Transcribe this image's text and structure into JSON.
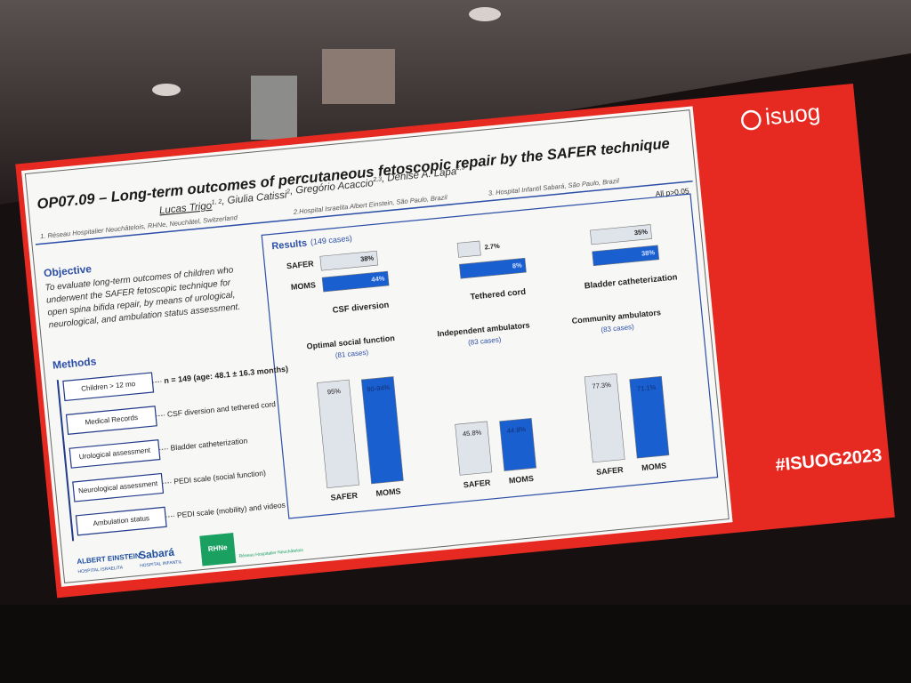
{
  "slide": {
    "title": "OP07.09 – Long-term outcomes of percutaneous fetoscopic repair by the SAFER technique",
    "authors": [
      {
        "name": "Lucas Trigo",
        "sup": "1, 2"
      },
      {
        "name": ", Giulia Catissi",
        "sup": "2"
      },
      {
        "name": ", Gregório Acaccio",
        "sup": "2,3"
      },
      {
        "name": ", Denise A. Lapa",
        "sup": "2,3"
      }
    ],
    "affiliations": [
      "1. Réseau Hospitalier Neuchâtelois, RHNe, Neuchâtel, Switzerland",
      "2.Hospital Israelita Albert Einstein, São Paulo, Brazil",
      "3. Hospital Infantil Sabará, São Paulo, Brazil"
    ],
    "note": "All p>0.05",
    "objective": {
      "heading": "Objective",
      "lines": [
        "To evaluate long-term outcomes of children who",
        "underwent the SAFER fetoscopic technique for",
        "open spina bifida repair, by means of urological,",
        "neurological, and ambulation status assessment."
      ]
    },
    "methods": {
      "heading": "Methods",
      "items": [
        {
          "box": "Children > 12 mo",
          "text": "n = 149 (age: 48.1 ± 16.3 months)"
        },
        {
          "box": "Medical Records",
          "text": "CSF diversion and tethered cord"
        },
        {
          "box": "Urological assessment",
          "text": "Bladder catheterization"
        },
        {
          "box": "Neurological assessment",
          "text": "PEDI scale (social function)"
        },
        {
          "box": "Ambulation status",
          "text": "PEDI scale (mobility) and videos"
        }
      ]
    },
    "logos": [
      {
        "name": "ALBERT EINSTEIN",
        "sub": "HOSPITAL ISRAELITA"
      },
      {
        "name": "Sabará",
        "sub": "HOSPITAL INFANTIL"
      },
      {
        "name": "RHNe",
        "sub": "Réseau Hospitalier Neuchâtelois"
      }
    ]
  },
  "results": {
    "heading": "Results",
    "cases": "(149 cases)",
    "groups": [
      "SAFER",
      "MOMS"
    ],
    "colors": [
      "#dfe3ea",
      "#1a5fd0"
    ],
    "horizontal": [
      {
        "title": "CSF diversion",
        "values": [
          38,
          44
        ],
        "value_labels": [
          "38%",
          "44%"
        ]
      },
      {
        "title": "Tethered cord",
        "values": [
          2.7,
          8
        ],
        "value_labels": [
          "2.7%",
          "8%"
        ]
      },
      {
        "title": "Bladder catheterization",
        "values": [
          35,
          38
        ],
        "value_labels": [
          "35%",
          "38%"
        ]
      }
    ],
    "vertical": [
      {
        "title": "Optimal social function",
        "subtitle": "(81 cases)",
        "values": [
          95,
          94
        ],
        "value_labels": [
          "95%",
          "90-94%"
        ]
      },
      {
        "title": "Independent ambulators",
        "subtitle": "(83 cases)",
        "values": [
          45.8,
          44.8
        ],
        "value_labels": [
          "45.8%",
          "44.8%"
        ]
      },
      {
        "title": "Community ambulators",
        "subtitle": "(83 cases)",
        "values": [
          77.3,
          71.1
        ],
        "value_labels": [
          "77.3%",
          "71.1%"
        ]
      }
    ]
  },
  "brand": {
    "logo": "isuog",
    "hashtag": "#ISUOG2023"
  }
}
